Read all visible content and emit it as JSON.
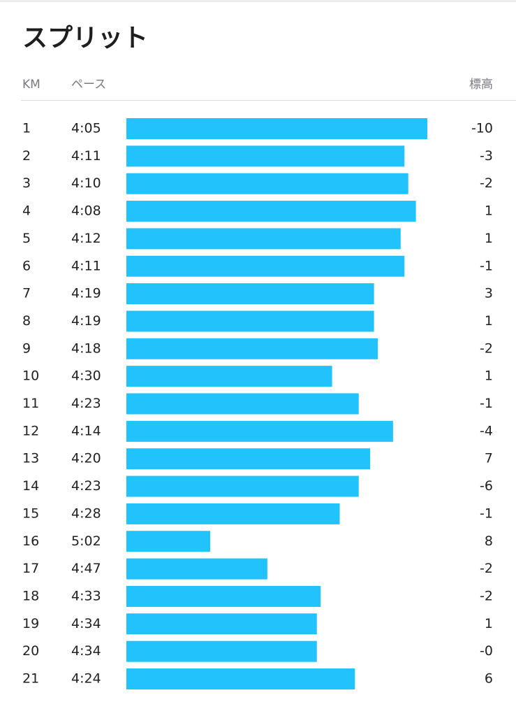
{
  "title": "スプリット",
  "header": {
    "km": "KM",
    "pace": "ペース",
    "elevation": "標高"
  },
  "rows": [
    {
      "km": 1,
      "pace": "4:05",
      "elevation": -10
    },
    {
      "km": 2,
      "pace": "4:11",
      "elevation": -3
    },
    {
      "km": 3,
      "pace": "4:10",
      "elevation": -2
    },
    {
      "km": 4,
      "pace": "4:08",
      "elevation": 1
    },
    {
      "km": 5,
      "pace": "4:12",
      "elevation": 1
    },
    {
      "km": 6,
      "pace": "4:11",
      "elevation": -1
    },
    {
      "km": 7,
      "pace": "4:19",
      "elevation": 3
    },
    {
      "km": 8,
      "pace": "4:19",
      "elevation": 1
    },
    {
      "km": 9,
      "pace": "4:18",
      "elevation": -2
    },
    {
      "km": 10,
      "pace": "4:30",
      "elevation": 1
    },
    {
      "km": 11,
      "pace": "4:23",
      "elevation": -1
    },
    {
      "km": 12,
      "pace": "4:14",
      "elevation": -4
    },
    {
      "km": 13,
      "pace": "4:20",
      "elevation": 7
    },
    {
      "km": 14,
      "pace": "4:23",
      "elevation": -6
    },
    {
      "km": 15,
      "pace": "4:28",
      "elevation": -1
    },
    {
      "km": 16,
      "pace": "5:02",
      "elevation": 8
    },
    {
      "km": 17,
      "pace": "4:47",
      "elevation": -2
    },
    {
      "km": 18,
      "pace": "4:33",
      "elevation": -2
    },
    {
      "km": 19,
      "pace": "4:34",
      "elevation": 1
    },
    {
      "km": 20,
      "pace": "4:34",
      "elevation": "-0"
    },
    {
      "km": 21,
      "pace": "4:24",
      "elevation": 6
    }
  ]
}
